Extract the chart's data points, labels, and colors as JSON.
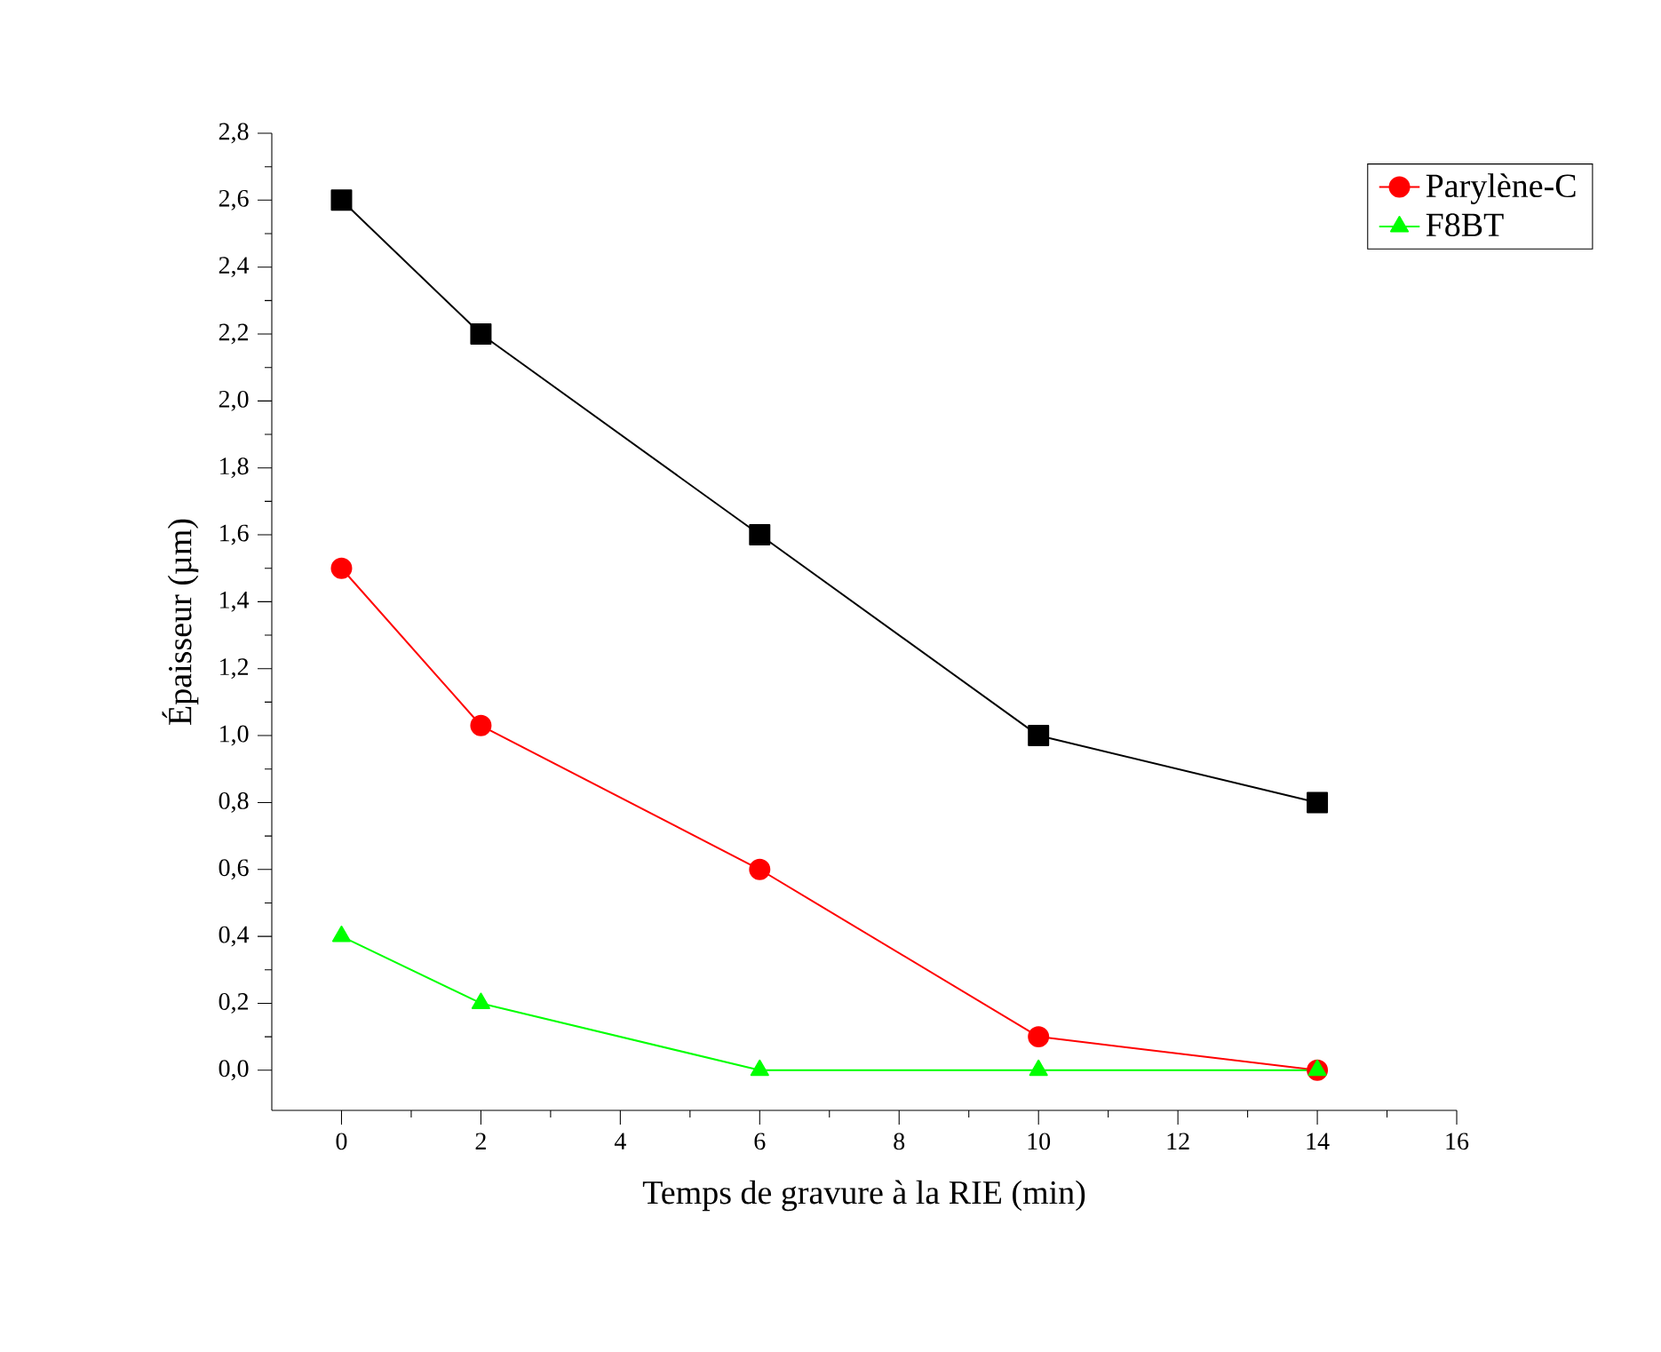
{
  "chart_data": {
    "type": "line",
    "xlabel": "Temps de gravure à la RIE (min)",
    "ylabel": "Épaisseur (µm)",
    "x": [
      0,
      2,
      6,
      10,
      14
    ],
    "series": [
      {
        "color": "#000000",
        "marker": "square",
        "values": [
          2.6,
          2.2,
          1.6,
          1.0,
          0.8
        ]
      },
      {
        "name": "Parylène-C",
        "color": "#ff0000",
        "marker": "circle",
        "values": [
          1.5,
          1.03,
          0.6,
          0.1,
          0.0
        ]
      },
      {
        "name": "F8BT",
        "color": "#00ff00",
        "marker": "triangle",
        "values": [
          0.4,
          0.2,
          0.0,
          0.0,
          0.0
        ]
      }
    ],
    "xlim": [
      -1,
      16
    ],
    "ylim": [
      -0.12,
      2.8
    ],
    "xticks": [
      0,
      2,
      4,
      6,
      8,
      10,
      12,
      14,
      16
    ],
    "yticks": [
      {
        "value": 0,
        "label": "0,0"
      },
      {
        "value": 0.2,
        "label": "0,2"
      },
      {
        "value": 0.4,
        "label": "0,4"
      },
      {
        "value": 0.6,
        "label": "0,6"
      },
      {
        "value": 0.8,
        "label": "0,8"
      },
      {
        "value": 1.0,
        "label": "1,0"
      },
      {
        "value": 1.2,
        "label": "1,2"
      },
      {
        "value": 1.4,
        "label": "1,4"
      },
      {
        "value": 1.6,
        "label": "1,6"
      },
      {
        "value": 1.8,
        "label": "1,8"
      },
      {
        "value": 2.0,
        "label": "2,0"
      },
      {
        "value": 2.2,
        "label": "2,2"
      },
      {
        "value": 2.4,
        "label": "2,4"
      },
      {
        "value": 2.6,
        "label": "2,6"
      },
      {
        "value": 2.8,
        "label": "2,8"
      }
    ],
    "grid": false,
    "legend": "top right",
    "line_style": "solid"
  }
}
